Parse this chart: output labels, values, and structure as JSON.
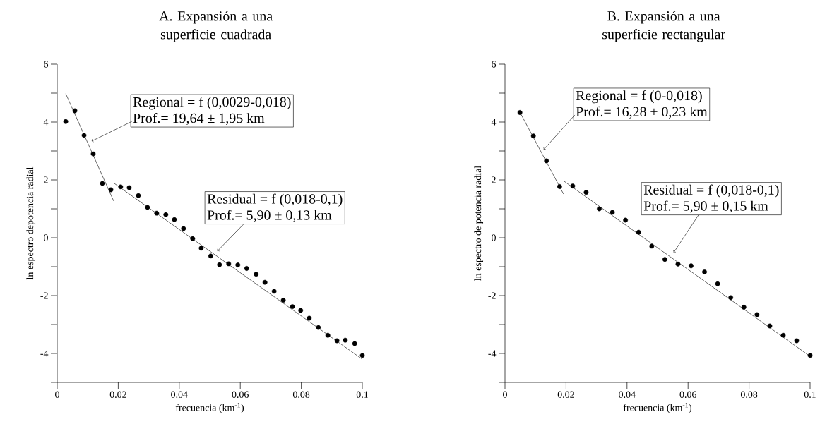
{
  "chart_data": [
    {
      "type": "scatter",
      "title": "A. Expansión a una superficie cuadrada",
      "xlabel": "frecuencia (km$^{-1}$)",
      "ylabel": "ln espectro depotencia radial",
      "xlim": [
        0,
        0.1
      ],
      "ylim": [
        -5,
        6
      ],
      "xticks": [
        0,
        0.02,
        0.04,
        0.06,
        0.08,
        0.1
      ],
      "yticks": [
        {
          "value": -5,
          "label": null
        },
        -4,
        {
          "value": -3,
          "label": null
        },
        -2,
        {
          "value": -1,
          "label": null
        },
        0,
        {
          "value": 1,
          "label": null
        },
        2,
        {
          "value": 3,
          "label": null
        },
        4,
        {
          "value": 5,
          "label": null
        },
        6
      ],
      "series": [
        {
          "color": "#000000",
          "marker": "circle",
          "x": [
            0.0028,
            0.0058,
            0.0088,
            0.0118,
            0.0148,
            0.0176,
            0.0208,
            0.0236,
            0.0266,
            0.0296,
            0.0326,
            0.0356,
            0.0384,
            0.0414,
            0.0444,
            0.0472,
            0.0503,
            0.0532,
            0.0562,
            0.0592,
            0.0621,
            0.0652,
            0.0681,
            0.0711,
            0.0741,
            0.0771,
            0.0798,
            0.0826,
            0.0856,
            0.0887,
            0.0917,
            0.0944,
            0.0975,
            0.1
          ],
          "values": [
            4.02,
            4.39,
            3.54,
            2.9,
            1.88,
            1.66,
            1.76,
            1.73,
            1.46,
            1.05,
            0.85,
            0.8,
            0.63,
            0.32,
            -0.03,
            -0.36,
            -0.63,
            -0.93,
            -0.9,
            -0.94,
            -1.06,
            -1.26,
            -1.54,
            -1.85,
            -2.16,
            -2.38,
            -2.51,
            -2.78,
            -3.1,
            -3.37,
            -3.56,
            -3.54,
            -3.66,
            -4.07
          ]
        },
        {
          "type": "line",
          "color": "#000000",
          "marker": "none",
          "line_style": "solid",
          "x": [
            0.0028,
            0.0185
          ],
          "values": [
            4.98,
            1.27
          ]
        },
        {
          "type": "line",
          "color": "#000000",
          "marker": "none",
          "line_style": "solid",
          "x": [
            0.0187,
            0.1
          ],
          "values": [
            1.88,
            -4.2
          ]
        }
      ],
      "annotations": [
        {
          "text": "Regional = f (0,0029-0,018)",
          "x": 0.0113,
          "y": 3.34
        },
        "Prof.= 19,64 ± 1,95 km",
        {
          "text": "Residual = f (0,018-0,1)",
          "x": 0.0525,
          "y": -0.46
        },
        "Prof.= 5,90 ± 0,13 km"
      ]
    },
    {
      "type": "scatter",
      "title": "B. Expansión a una superficie rectangular",
      "xlabel": "frecuencia (km$^{-1}$)",
      "ylabel": "ln espectro de potencia radial",
      "xlim": [
        0,
        0.1
      ],
      "ylim": [
        -5,
        6
      ],
      "xticks": [
        0,
        0.02,
        0.04,
        0.06,
        0.08,
        0.1
      ],
      "yticks": [
        {
          "value": -5,
          "label": null
        },
        -4,
        {
          "value": -3,
          "label": null
        },
        -2,
        {
          "value": -1,
          "label": null
        },
        0,
        {
          "value": 1,
          "label": null
        },
        2,
        {
          "value": 3,
          "label": null
        },
        4,
        {
          "value": 5,
          "label": null
        },
        6
      ],
      "series": [
        {
          "color": "#000000",
          "marker": "circle",
          "x": [
            0.0049,
            0.0093,
            0.0136,
            0.0179,
            0.0222,
            0.0266,
            0.0309,
            0.0352,
            0.0395,
            0.0438,
            0.0481,
            0.0524,
            0.0567,
            0.061,
            0.0654,
            0.0697,
            0.074,
            0.0783,
            0.0826,
            0.0868,
            0.0912,
            0.0956,
            0.1
          ],
          "values": [
            4.33,
            3.52,
            2.66,
            1.77,
            1.79,
            1.57,
            1.0,
            0.88,
            0.61,
            0.19,
            -0.29,
            -0.75,
            -0.91,
            -0.97,
            -1.18,
            -1.59,
            -2.07,
            -2.4,
            -2.66,
            -3.05,
            -3.37,
            -3.56,
            -4.07
          ]
        },
        {
          "type": "line",
          "color": "#000000",
          "marker": "none",
          "line_style": "solid",
          "x": [
            0.005,
            0.0192
          ],
          "values": [
            4.32,
            1.51
          ]
        },
        {
          "type": "line",
          "color": "#000000",
          "marker": "none",
          "line_style": "solid",
          "x": [
            0.0193,
            0.1
          ],
          "values": [
            1.96,
            -4.1
          ]
        }
      ],
      "annotations": [
        {
          "text": "Regional = f (0-0,018)",
          "x": 0.0127,
          "y": 3.05
        },
        "Prof.= 16,28 ± 0,23 km",
        {
          "text": "Residual = f (0,018-0,1)",
          "x": 0.0553,
          "y": -0.51
        },
        "Prof.= 5,90 ± 0,15 km"
      ]
    }
  ]
}
